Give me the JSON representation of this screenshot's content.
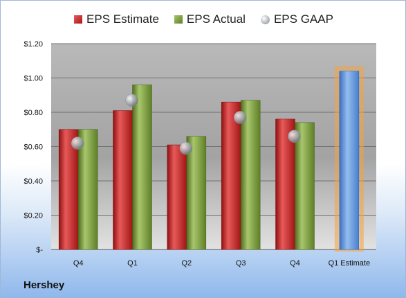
{
  "chart_data": {
    "type": "bar",
    "categories": [
      "Q4",
      "Q1",
      "Q2",
      "Q3",
      "Q4",
      "Q1 Estimate"
    ],
    "series": [
      {
        "name": "EPS Estimate",
        "values": [
          0.7,
          0.81,
          0.61,
          0.86,
          0.76,
          null
        ],
        "color": "#c82424"
      },
      {
        "name": "EPS Actual",
        "values": [
          0.7,
          0.96,
          0.66,
          0.87,
          0.74,
          null
        ],
        "color": "#7a9a3a"
      },
      {
        "name": "EPS GAAP",
        "values": [
          0.62,
          0.87,
          0.59,
          0.77,
          0.66,
          null
        ],
        "color": "#a6a9ae",
        "marker": "circle"
      },
      {
        "name": "Q1 Estimate",
        "values": [
          null,
          null,
          null,
          null,
          null,
          1.04
        ],
        "color": "#5b8fd6",
        "highlight": "#f7a23b"
      }
    ],
    "yticks": [
      "$1.20",
      "$1.00",
      "$0.80",
      "$0.60",
      "$0.40",
      "$0.20",
      "$-"
    ],
    "ylim": [
      0,
      1.2
    ],
    "grid": true,
    "legend": "top",
    "company": "Hershey"
  }
}
